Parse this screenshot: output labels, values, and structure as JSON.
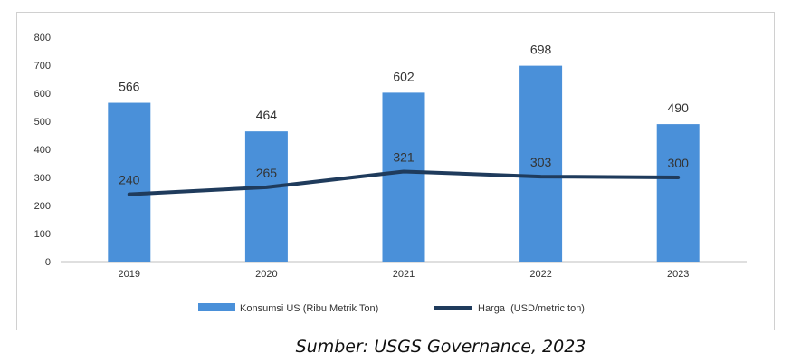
{
  "chart_data": {
    "type": "bar",
    "categories": [
      "2019",
      "2020",
      "2021",
      "2022",
      "2023"
    ],
    "series": [
      {
        "name": "Konsumsi US (Ribu Metrik Ton)",
        "kind": "bar",
        "color": "#4a90d9",
        "values": [
          566,
          464,
          602,
          698,
          490
        ]
      },
      {
        "name": "Harga  (USD/metric ton)",
        "kind": "line",
        "color": "#1f3b5c",
        "values": [
          240,
          265,
          321,
          303,
          300
        ]
      }
    ],
    "ylim": [
      0,
      800
    ],
    "yticks": [
      0,
      100,
      200,
      300,
      400,
      500,
      600,
      700,
      800
    ],
    "title": "",
    "xlabel": "",
    "ylabel": "",
    "legend_position": "bottom",
    "grid": false
  },
  "caption": "Sumber: USGS Governance, 2023"
}
